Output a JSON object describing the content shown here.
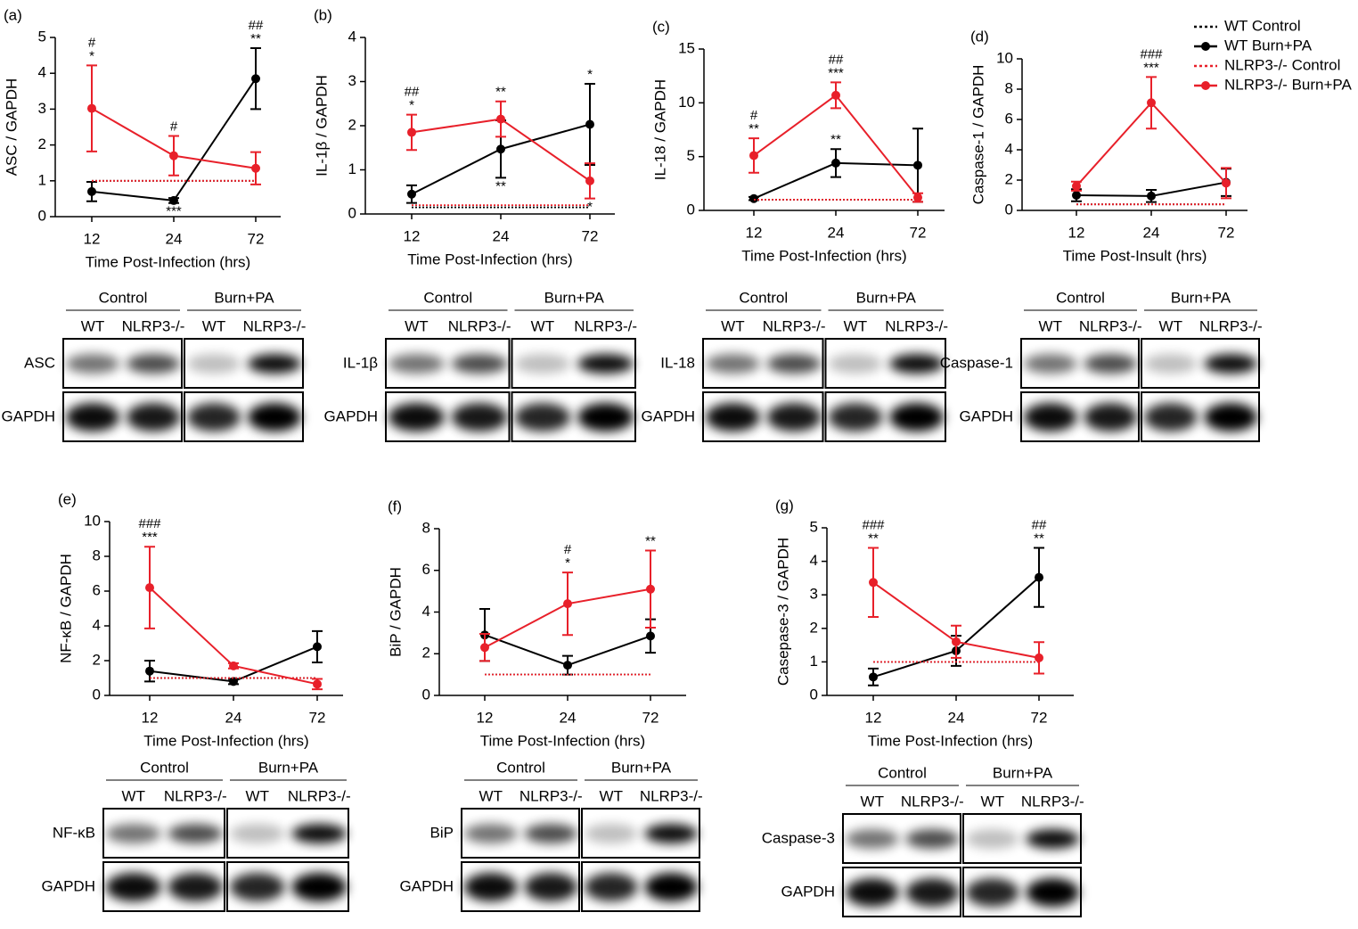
{
  "chart_data": [
    {
      "type": "line",
      "panel": "(a)",
      "ylabel": "ASC / GAPDH",
      "xlabel": "Time Post-Infection (hrs)",
      "categories": [
        "12",
        "24",
        "72"
      ],
      "ylim": [
        0,
        5
      ],
      "yticks": [
        0,
        1,
        2,
        3,
        4,
        5
      ],
      "series": [
        {
          "color": "#000000",
          "style": "dotted",
          "values": [
            1,
            1,
            1
          ]
        },
        {
          "color": "#000000",
          "values": [
            0.7,
            0.45,
            3.85
          ],
          "errors": [
            0.27,
            0.07,
            0.85
          ]
        },
        {
          "color": "#e8202a",
          "style": "dotted",
          "values": [
            1,
            1,
            1
          ]
        },
        {
          "color": "#e8202a",
          "values": [
            3.02,
            1.7,
            1.35
          ],
          "errors": [
            1.2,
            0.55,
            0.45
          ]
        }
      ],
      "annotations": [
        {
          "category": 0,
          "series": 3,
          "side": "above",
          "lines": [
            "#",
            "*"
          ]
        },
        {
          "category": 1,
          "series": 3,
          "side": "above",
          "lines": [
            "#"
          ]
        },
        {
          "category": 1,
          "series": 1,
          "side": "below",
          "lines": [
            "***"
          ]
        },
        {
          "category": 2,
          "series": 1,
          "side": "above",
          "lines": [
            "##",
            "**"
          ]
        }
      ],
      "blot": {
        "groups": [
          "Control",
          "Burn+PA"
        ],
        "lanes": [
          "WT",
          "NLRP3-/-",
          "WT",
          "NLRP3-/-"
        ],
        "rows": [
          "ASC",
          "GAPDH"
        ]
      }
    },
    {
      "type": "line",
      "panel": "(b)",
      "ylabel": "IL-1β / GAPDH",
      "xlabel": "Time Post-Infection (hrs)",
      "categories": [
        "12",
        "24",
        "72"
      ],
      "ylim": [
        0,
        4
      ],
      "yticks": [
        0,
        1,
        2,
        3,
        4
      ],
      "series": [
        {
          "color": "#000000",
          "style": "dotted",
          "values": [
            0.15,
            0.15,
            0.15
          ]
        },
        {
          "color": "#000000",
          "values": [
            0.45,
            1.47,
            2.03
          ],
          "errors": [
            0.2,
            0.65,
            0.92
          ]
        },
        {
          "color": "#e8202a",
          "style": "dotted",
          "values": [
            0.2,
            0.2,
            0.2
          ]
        },
        {
          "color": "#e8202a",
          "values": [
            1.85,
            2.15,
            0.75
          ],
          "errors": [
            0.4,
            0.4,
            0.4
          ]
        }
      ],
      "annotations": [
        {
          "category": 0,
          "series": 3,
          "side": "above",
          "lines": [
            "##",
            "*"
          ]
        },
        {
          "category": 1,
          "series": 3,
          "side": "above",
          "lines": [
            "**"
          ]
        },
        {
          "category": 1,
          "series": 1,
          "side": "below",
          "lines": [
            "**"
          ]
        },
        {
          "category": 2,
          "series": 1,
          "side": "above",
          "lines": [
            "*"
          ]
        },
        {
          "category": 2,
          "series": 3,
          "side": "below",
          "lines": [
            "*"
          ]
        }
      ],
      "blot": {
        "groups": [
          "Control",
          "Burn+PA"
        ],
        "lanes": [
          "WT",
          "NLRP3-/-",
          "WT",
          "NLRP3-/-"
        ],
        "rows": [
          "IL-1β",
          "GAPDH"
        ]
      }
    },
    {
      "type": "line",
      "panel": "(c)",
      "ylabel": "IL-18 / GAPDH",
      "xlabel": "Time Post-Infection (hrs)",
      "categories": [
        "12",
        "24",
        "72"
      ],
      "ylim": [
        0,
        15
      ],
      "yticks": [
        0,
        5,
        10,
        15
      ],
      "series": [
        {
          "color": "#000000",
          "style": "dotted",
          "values": [
            1,
            1,
            1
          ]
        },
        {
          "color": "#000000",
          "values": [
            1.1,
            4.4,
            4.2
          ],
          "errors": [
            0.15,
            1.3,
            3.4
          ]
        },
        {
          "color": "#e8202a",
          "style": "dotted",
          "values": [
            1,
            1,
            1
          ]
        },
        {
          "color": "#e8202a",
          "values": [
            5.1,
            10.7,
            1.2
          ],
          "errors": [
            1.6,
            1.2,
            0.4
          ]
        }
      ],
      "annotations": [
        {
          "category": 0,
          "series": 3,
          "side": "above",
          "lines": [
            "#",
            "**"
          ]
        },
        {
          "category": 1,
          "series": 3,
          "side": "above",
          "lines": [
            "##",
            "***"
          ]
        },
        {
          "category": 1,
          "series": 1,
          "side": "above",
          "lines": [
            "**"
          ]
        }
      ],
      "blot": {
        "groups": [
          "Control",
          "Burn+PA"
        ],
        "lanes": [
          "WT",
          "NLRP3-/-",
          "WT",
          "NLRP3-/-"
        ],
        "rows": [
          "IL-18",
          "GAPDH"
        ]
      }
    },
    {
      "type": "line",
      "panel": "(d)",
      "ylabel": "Caspase-1 / GAPDH",
      "xlabel": "Time Post-Insult (hrs)",
      "categories": [
        "12",
        "24",
        "72"
      ],
      "ylim": [
        0,
        10
      ],
      "yticks": [
        0,
        2,
        4,
        6,
        8,
        10
      ],
      "legend": "top-right",
      "series": [
        {
          "name": "WT Control",
          "color": "#000000",
          "style": "dotted",
          "values": [
            0.4,
            0.4,
            0.4
          ]
        },
        {
          "name": "WT Burn+PA",
          "color": "#000000",
          "values": [
            1.0,
            0.95,
            1.85
          ],
          "errors": [
            0.4,
            0.4,
            0.9
          ]
        },
        {
          "name": "NLRP3-/- Control",
          "color": "#e8202a",
          "style": "dotted",
          "values": [
            0.4,
            0.4,
            0.4
          ]
        },
        {
          "name": "NLRP3-/- Burn+PA",
          "color": "#e8202a",
          "values": [
            1.6,
            7.1,
            1.8
          ],
          "errors": [
            0.3,
            1.7,
            1.0
          ]
        }
      ],
      "annotations": [
        {
          "category": 1,
          "series": 3,
          "side": "above",
          "lines": [
            "###",
            "***"
          ]
        }
      ],
      "blot": {
        "groups": [
          "Control",
          "Burn+PA"
        ],
        "lanes": [
          "WT",
          "NLRP3-/-",
          "WT",
          "NLRP3-/-"
        ],
        "rows": [
          "Caspase-1",
          "GAPDH"
        ]
      }
    },
    {
      "type": "line",
      "panel": "(e)",
      "ylabel": "NF-κB / GAPDH",
      "xlabel": "Time Post-Infection (hrs)",
      "categories": [
        "12",
        "24",
        "72"
      ],
      "ylim": [
        0,
        10
      ],
      "yticks": [
        0,
        2,
        4,
        6,
        8,
        10
      ],
      "series": [
        {
          "color": "#000000",
          "style": "dotted",
          "values": [
            1,
            1,
            1
          ]
        },
        {
          "color": "#000000",
          "values": [
            1.4,
            0.8,
            2.8
          ],
          "errors": [
            0.6,
            0.15,
            0.9
          ]
        },
        {
          "color": "#e8202a",
          "style": "dotted",
          "values": [
            1,
            1,
            1
          ]
        },
        {
          "color": "#e8202a",
          "values": [
            6.2,
            1.7,
            0.65
          ],
          "errors": [
            2.35,
            0.15,
            0.3
          ]
        }
      ],
      "annotations": [
        {
          "category": 0,
          "series": 3,
          "side": "above",
          "lines": [
            "###",
            "***"
          ]
        }
      ],
      "blot": {
        "groups": [
          "Control",
          "Burn+PA"
        ],
        "lanes": [
          "WT",
          "NLRP3-/-",
          "WT",
          "NLRP3-/-"
        ],
        "rows": [
          "NF-κB",
          "GAPDH"
        ]
      }
    },
    {
      "type": "line",
      "panel": "(f)",
      "ylabel": "BiP / GAPDH",
      "xlabel": "Time Post-Infection (hrs)",
      "categories": [
        "12",
        "24",
        "72"
      ],
      "ylim": [
        0,
        8
      ],
      "yticks": [
        0,
        2,
        4,
        6,
        8
      ],
      "series": [
        {
          "color": "#000000",
          "style": "dotted",
          "values": [
            1,
            1,
            1
          ]
        },
        {
          "color": "#000000",
          "values": [
            2.9,
            1.45,
            2.85
          ],
          "errors": [
            1.25,
            0.45,
            0.8
          ]
        },
        {
          "color": "#e8202a",
          "style": "dotted",
          "values": [
            1,
            1,
            1
          ]
        },
        {
          "color": "#e8202a",
          "values": [
            2.3,
            4.4,
            5.1
          ],
          "errors": [
            0.65,
            1.5,
            1.85
          ]
        }
      ],
      "annotations": [
        {
          "category": 1,
          "series": 3,
          "side": "above",
          "lines": [
            "#",
            "*"
          ]
        },
        {
          "category": 2,
          "series": 3,
          "side": "above",
          "lines": [
            "**"
          ]
        }
      ],
      "blot": {
        "groups": [
          "Control",
          "Burn+PA"
        ],
        "lanes": [
          "WT",
          "NLRP3-/-",
          "WT",
          "NLRP3-/-"
        ],
        "rows": [
          "BiP",
          "GAPDH"
        ]
      }
    },
    {
      "type": "line",
      "panel": "(g)",
      "ylabel": "Casepase-3 / GAPDH",
      "xlabel": "Time Post-Infection (hrs)",
      "categories": [
        "12",
        "24",
        "72"
      ],
      "ylim": [
        0,
        5
      ],
      "yticks": [
        0,
        1,
        2,
        3,
        4,
        5
      ],
      "series": [
        {
          "color": "#000000",
          "style": "dotted",
          "values": [
            1,
            1,
            1
          ]
        },
        {
          "color": "#000000",
          "values": [
            0.55,
            1.33,
            3.52
          ],
          "errors": [
            0.25,
            0.45,
            0.88
          ]
        },
        {
          "color": "#e8202a",
          "style": "dotted",
          "values": [
            1,
            1,
            1
          ]
        },
        {
          "color": "#e8202a",
          "values": [
            3.37,
            1.6,
            1.12
          ],
          "errors": [
            1.03,
            0.48,
            0.47
          ]
        }
      ],
      "annotations": [
        {
          "category": 0,
          "series": 3,
          "side": "above",
          "lines": [
            "###",
            "**"
          ]
        },
        {
          "category": 2,
          "series": 1,
          "side": "above",
          "lines": [
            "##",
            "**"
          ]
        }
      ],
      "blot": {
        "groups": [
          "Control",
          "Burn+PA"
        ],
        "lanes": [
          "WT",
          "NLRP3-/-",
          "WT",
          "NLRP3-/-"
        ],
        "rows": [
          "Caspase-3",
          "GAPDH"
        ]
      }
    }
  ]
}
